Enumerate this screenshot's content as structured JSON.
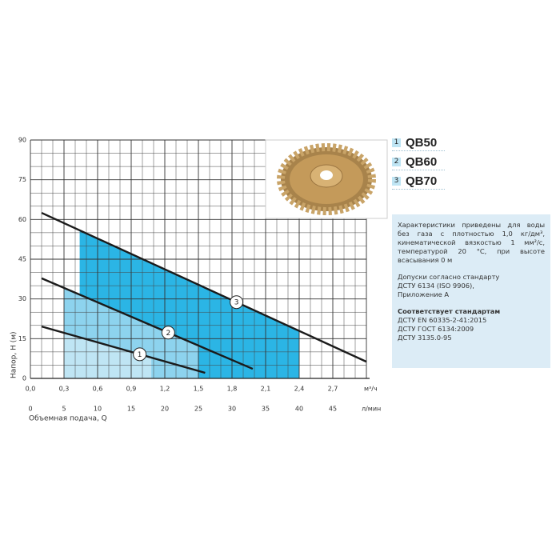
{
  "chart_data": {
    "type": "line",
    "xlabel": "Объемная подача, Q",
    "ylabel": "Напор, H (м)",
    "x_unit": "м³/ч",
    "x2_unit": "л/мин",
    "xlim": [
      0,
      3.0
    ],
    "x2lim": [
      0,
      50
    ],
    "ylim": [
      0,
      90
    ],
    "xticks": [
      {
        "value": 0,
        "label": "0,0"
      },
      {
        "value": 0.3,
        "label": "0,3"
      },
      {
        "value": 0.6,
        "label": "0,6"
      },
      {
        "value": 0.9,
        "label": "0,9"
      },
      {
        "value": 1.2,
        "label": "1,2"
      },
      {
        "value": 1.5,
        "label": "1,5"
      },
      {
        "value": 1.8,
        "label": "1,8"
      },
      {
        "value": 2.1,
        "label": "2,1"
      },
      {
        "value": 2.4,
        "label": "2,4"
      },
      {
        "value": 2.7,
        "label": "2,7"
      }
    ],
    "x2ticks": [
      0,
      5,
      10,
      15,
      20,
      25,
      30,
      35,
      40,
      45
    ],
    "yticks": [
      0,
      15,
      30,
      45,
      60,
      75,
      90
    ],
    "grid": true,
    "legend": "top-right",
    "series": [
      {
        "name": "QB50",
        "label": "1",
        "color": "#1a1a1a",
        "x": [
          0.1,
          1.56
        ],
        "values": [
          19.6,
          2.1
        ],
        "range": [
          0.3,
          1.08
        ],
        "range_color": "#bfe5f4"
      },
      {
        "name": "QB60",
        "label": "2",
        "color": "#1a1a1a",
        "x": [
          0.1,
          1.985
        ],
        "values": [
          37.8,
          3.6
        ],
        "range": [
          0.3,
          1.5
        ],
        "range_color": "#8dd3ee"
      },
      {
        "name": "QB70",
        "label": "3",
        "color": "#1a1a1a",
        "x": [
          0.1,
          3.0
        ],
        "values": [
          62.5,
          6.3
        ],
        "range": [
          0.44,
          2.4
        ],
        "range_color": "#2bb5e5"
      }
    ]
  },
  "note": {
    "description": "Характеристики приведены для воды без газа с плотностью 1,0 кг/дм³, кинематической вязкостью 1 мм²/с, температурой 20 °C, при высоте всасывания 0 м",
    "tolerance": [
      "Допуски согласно стандарту",
      "ДСТУ 6134 (ISO 9906),",
      "Приложение А"
    ],
    "compliance_title": "Соответствует стандартам",
    "compliance": [
      "ДСТУ EN 60335-2-41:2015",
      "ДСТУ ГОСТ 6134:2009",
      "ДСТУ 3135.0-95"
    ]
  }
}
